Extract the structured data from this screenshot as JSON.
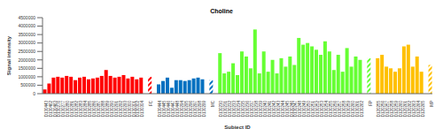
{
  "chart_data": {
    "type": "bar",
    "title": "Choline",
    "x_label": "Subject ID",
    "y_label": "Signal intensity",
    "ylim": [
      0,
      4500000
    ],
    "yticks": [
      0,
      500000,
      1000000,
      1500000,
      2000000,
      2500000,
      3000000,
      3500000,
      4000000,
      4500000
    ],
    "grid": false,
    "groups": [
      {
        "name": "FC",
        "color": "#ff0000",
        "group_value": 1000000,
        "categories": [
          "D130443",
          "D130462",
          "D130463",
          "D130276",
          "D130277",
          "D130280",
          "D130281",
          "D130282",
          "D130283",
          "D130284",
          "D130285",
          "D130286",
          "D130287",
          "D130288",
          "D130289",
          "D130290",
          "D130291",
          "D130292",
          "D130293",
          "D130300",
          "D130301",
          "D130302",
          "D130304"
        ],
        "values": [
          250000,
          600000,
          950000,
          1000000,
          950000,
          1050000,
          1000000,
          800000,
          950000,
          1000000,
          850000,
          900000,
          950000,
          1050000,
          1400000,
          1050000,
          950000,
          1000000,
          1100000,
          900000,
          1000000,
          850000,
          950000
        ]
      },
      {
        "name": "MC",
        "color": "#0070c0",
        "group_value": 800000,
        "categories": [
          "D130444",
          "D130445",
          "D130446",
          "D130447",
          "D130448",
          "D130294",
          "D130295",
          "D130296",
          "D130297",
          "D130298",
          "D130299"
        ],
        "values": [
          550000,
          750000,
          950000,
          350000,
          800000,
          800000,
          750000,
          800000,
          900000,
          950000,
          850000
        ]
      },
      {
        "name": "FP",
        "color": "#66ff33",
        "group_value": 2100000,
        "categories": [
          "D130230",
          "D130231",
          "D130232",
          "D130233",
          "D130234",
          "D130235",
          "D130236",
          "D130237",
          "D130238",
          "D130239",
          "D130240",
          "D130241",
          "D130242",
          "D130243",
          "D130244",
          "D130245",
          "D130246",
          "D130247",
          "D130248",
          "D130249",
          "D130250",
          "D130251",
          "D130252",
          "D130253",
          "D130254",
          "D130255",
          "D130256",
          "D130257",
          "D130258",
          "D130259",
          "D130260",
          "D130261",
          "D130262"
        ],
        "values": [
          2400000,
          1200000,
          1300000,
          1800000,
          1100000,
          2500000,
          2200000,
          1500000,
          3800000,
          1200000,
          2500000,
          1300000,
          2000000,
          1200000,
          2100000,
          1600000,
          2200000,
          1700000,
          3300000,
          2900000,
          3000000,
          2800000,
          2600000,
          2300000,
          3100000,
          2500000,
          1400000,
          2300000,
          1300000,
          2700000,
          1600000,
          2200000,
          2000000
        ]
      },
      {
        "name": "MP",
        "color": "#ffc000",
        "group_value": 1700000,
        "categories": [
          "D120255",
          "D120256",
          "D120257",
          "D120258",
          "D120259",
          "D120260",
          "D120261",
          "D120262",
          "D120263",
          "D120264",
          "D120265"
        ],
        "values": [
          2100000,
          2300000,
          1600000,
          1500000,
          1300000,
          1500000,
          2800000,
          2900000,
          1600000,
          2200000,
          1300000
        ]
      }
    ]
  }
}
